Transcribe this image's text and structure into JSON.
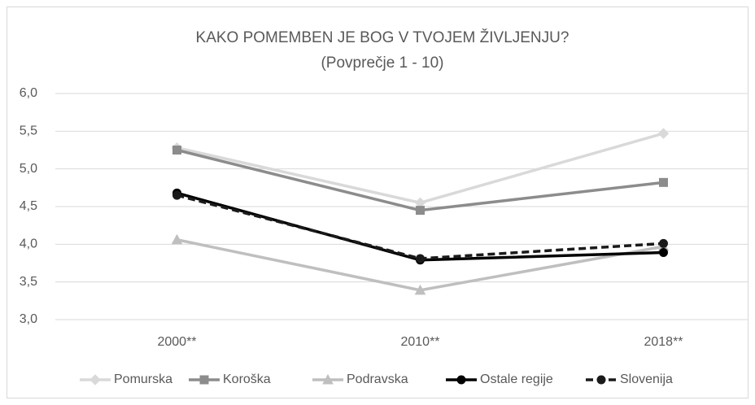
{
  "chart_data": {
    "type": "line",
    "title": "KAKO POMEMBEN JE BOG V TVOJEM ŽIVLJENJU?",
    "subtitle": "(Povprečje 1 - 10)",
    "categories": [
      "2000**",
      "2010**",
      "2018**"
    ],
    "series": [
      {
        "name": "Pomurska",
        "color": "#d9d9d9",
        "marker": "diamond",
        "values": [
          5.28,
          4.55,
          5.47
        ]
      },
      {
        "name": "Koroška",
        "color": "#8c8c8c",
        "marker": "square",
        "values": [
          5.25,
          4.45,
          4.82
        ]
      },
      {
        "name": "Podravska",
        "color": "#bfbfbf",
        "marker": "triangle",
        "values": [
          4.06,
          3.39,
          3.97
        ]
      },
      {
        "name": "Ostale regije",
        "color": "#000000",
        "marker": "circle",
        "values": [
          4.68,
          3.79,
          3.89
        ]
      },
      {
        "name": "Slovenija",
        "color": "#1a1a1a",
        "marker": "circle",
        "dashed": true,
        "values": [
          4.65,
          3.81,
          4.01
        ]
      }
    ],
    "ylim": [
      3,
      6
    ],
    "yticks": [
      {
        "value": 3,
        "label": "3,0"
      },
      {
        "value": 3.5,
        "label": "3,5"
      },
      {
        "value": 4,
        "label": "4,0"
      },
      {
        "value": 4.5,
        "label": "4,5"
      },
      {
        "value": 5,
        "label": "5,0"
      },
      {
        "value": 5.5,
        "label": "5,5"
      },
      {
        "value": 6,
        "label": "6,0"
      }
    ],
    "grid": true,
    "legend": "bottom"
  }
}
